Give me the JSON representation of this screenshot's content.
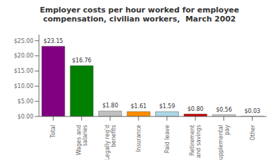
{
  "chart_data": {
    "type": "bar",
    "title": "Employer costs per hour worked for employee\ncompensation, civilian workers,  March 2002",
    "categories": [
      "Total",
      "Wages and\nsalaries",
      "Legally req'd\nbenefits",
      "Insurance",
      "Paid leave",
      "Retirement\nand savings",
      "Supplemental\npay",
      "Other"
    ],
    "values": [
      23.15,
      16.76,
      1.8,
      1.61,
      1.59,
      0.8,
      0.56,
      0.03
    ],
    "value_labels": [
      "$23.15",
      "$16.76",
      "$1.80",
      "$1.61",
      "$1.59",
      "$0.80",
      "$0.56",
      "$0.03"
    ],
    "data_labels": true,
    "colors": [
      "#800080",
      "#008000",
      "#c0c0c0",
      "#ff8c00",
      "#add8e6",
      "#cc0000",
      "#d3d3d3",
      "#f5f5dc"
    ],
    "ylim": [
      0,
      27
    ],
    "yticks": [
      {
        "value": 0,
        "label": "$0.00"
      },
      {
        "value": 5,
        "label": "$5.00"
      },
      {
        "value": 10,
        "label": "$10.00"
      },
      {
        "value": 15,
        "label": "$15.00"
      },
      {
        "value": 20,
        "label": "$20.00"
      },
      {
        "value": 25,
        "label": "$25.00"
      }
    ],
    "grid": false
  }
}
